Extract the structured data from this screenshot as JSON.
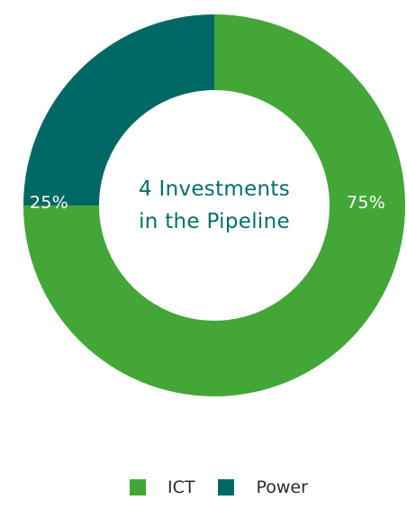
{
  "chart_data": {
    "type": "pie",
    "variant": "donut",
    "center_text": [
      "4 Investments",
      "in the Pipeline"
    ],
    "slices": [
      {
        "label": "ICT",
        "value": 75,
        "display": "75%",
        "color": "#42a736"
      },
      {
        "label": "Power",
        "value": 25,
        "display": "25%",
        "color": "#006864"
      }
    ],
    "legend": {
      "placement": "bottom",
      "items": [
        "ICT",
        "Power"
      ]
    }
  },
  "colors": {
    "ict": "#42a736",
    "power": "#006864",
    "center_text": "#00706a"
  }
}
